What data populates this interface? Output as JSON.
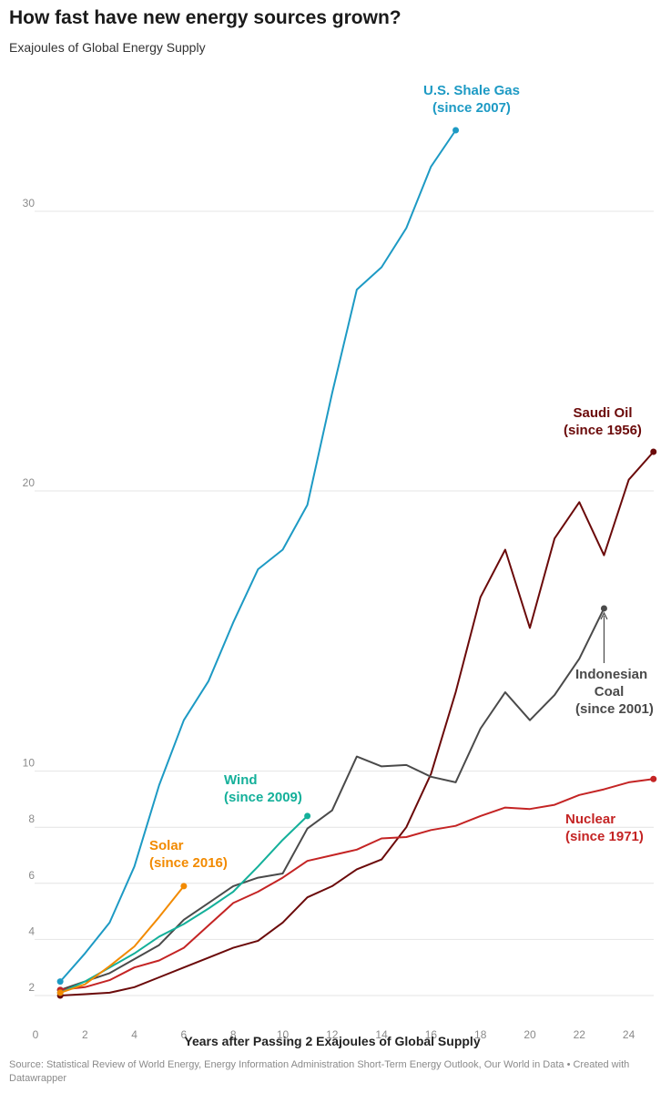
{
  "title": "How fast have new energy sources grown?",
  "subtitle": "Exajoules of Global Energy Supply",
  "source": "Source: Statistical Review of World Energy, Energy Information Administration Short-Term Energy Outlook, Our World in Data • Created with Datawrapper",
  "chart_data": {
    "type": "line",
    "xlabel": "Years after Passing 2 Exajoules of Global Supply",
    "ylabel": "",
    "xlim": [
      0,
      25
    ],
    "x_ticks": [
      0,
      2,
      4,
      6,
      8,
      10,
      12,
      14,
      16,
      18,
      20,
      22,
      24
    ],
    "y_axis_note": "broken scale: 2-10 expanded, 10-30 compressed",
    "y_ticks": [
      2,
      4,
      6,
      8,
      10,
      20,
      30
    ],
    "grid": true,
    "legend": "direct labels at series ends",
    "series": [
      {
        "name": "U.S. Shale Gas",
        "label_lines": [
          "U.S. Shale Gas",
          "(since 2007)"
        ],
        "color": "#1d9ac4",
        "x": [
          1,
          2,
          3,
          4,
          5,
          6,
          7,
          8,
          9,
          10,
          11,
          12,
          13,
          14,
          15,
          16,
          17
        ],
        "y": [
          2.5,
          3.5,
          4.6,
          6.6,
          9.5,
          11.8,
          13.2,
          15.3,
          17.2,
          17.9,
          19.5,
          23.5,
          27.2,
          28.0,
          29.4,
          31.6,
          32.9
        ]
      },
      {
        "name": "Saudi Oil",
        "label_lines": [
          "Saudi Oil",
          "(since 1956)"
        ],
        "color": "#6b0a0a",
        "x": [
          1,
          2,
          3,
          4,
          5,
          6,
          7,
          8,
          9,
          10,
          11,
          12,
          13,
          14,
          15,
          16,
          17,
          18,
          19,
          20,
          21,
          22,
          23,
          24,
          25
        ],
        "y": [
          2.0,
          2.05,
          2.1,
          2.3,
          2.65,
          3.0,
          3.35,
          3.7,
          3.95,
          4.6,
          5.5,
          5.9,
          6.5,
          6.85,
          8.0,
          9.9,
          12.8,
          16.2,
          17.9,
          15.1,
          18.3,
          19.6,
          17.7,
          20.4,
          21.4
        ]
      },
      {
        "name": "Indonesian Coal",
        "label_lines": [
          "Indonesian",
          "Coal",
          "(since 2001)"
        ],
        "color": "#4a4a4a",
        "x": [
          1,
          2,
          3,
          4,
          5,
          6,
          7,
          8,
          9,
          10,
          11,
          12,
          13,
          14,
          15,
          16,
          17,
          18,
          19,
          20,
          21,
          22,
          23
        ],
        "y": [
          2.2,
          2.5,
          2.8,
          3.3,
          3.8,
          4.7,
          5.3,
          5.9,
          6.2,
          6.35,
          7.95,
          8.6,
          10.5,
          10.15,
          10.2,
          9.8,
          9.6,
          11.5,
          12.8,
          11.8,
          12.7,
          14.0,
          15.8
        ]
      },
      {
        "name": "Nuclear",
        "label_lines": [
          "Nuclear",
          "(since 1971)"
        ],
        "color": "#c42424",
        "x": [
          1,
          2,
          3,
          4,
          5,
          6,
          7,
          8,
          9,
          10,
          11,
          12,
          13,
          14,
          15,
          16,
          17,
          18,
          19,
          20,
          21,
          22,
          23,
          24,
          25
        ],
        "y": [
          2.2,
          2.3,
          2.55,
          3.0,
          3.25,
          3.7,
          4.5,
          5.3,
          5.7,
          6.2,
          6.8,
          7.0,
          7.2,
          7.6,
          7.65,
          7.9,
          8.05,
          8.4,
          8.7,
          8.65,
          8.8,
          9.15,
          9.35,
          9.6,
          9.72
        ]
      },
      {
        "name": "Wind",
        "label_lines": [
          "Wind",
          "(since 2009)"
        ],
        "color": "#14b09a",
        "x": [
          1,
          2,
          3,
          4,
          5,
          6,
          7,
          8,
          9,
          10,
          11
        ],
        "y": [
          2.1,
          2.5,
          3.0,
          3.5,
          4.1,
          4.55,
          5.1,
          5.7,
          6.6,
          7.55,
          8.4
        ]
      },
      {
        "name": "Solar",
        "label_lines": [
          "Solar",
          "(since 2016)"
        ],
        "color": "#f28a00",
        "x": [
          1,
          2,
          3,
          4,
          5,
          6
        ],
        "y": [
          2.1,
          2.4,
          3.05,
          3.75,
          4.8,
          5.9
        ]
      }
    ]
  }
}
